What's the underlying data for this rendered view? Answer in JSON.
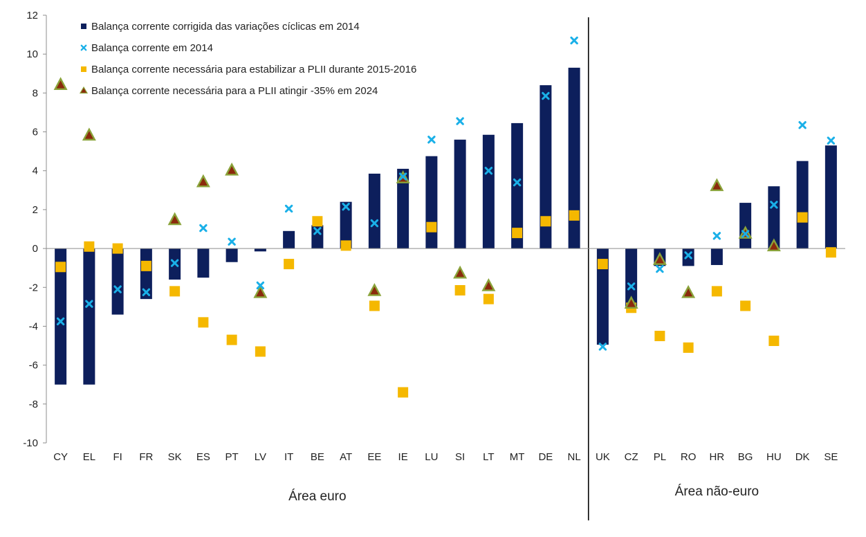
{
  "chart_data": {
    "type": "bar",
    "categories": [
      "CY",
      "EL",
      "FI",
      "FR",
      "SK",
      "ES",
      "PT",
      "LV",
      "IT",
      "BE",
      "AT",
      "EE",
      "IE",
      "LU",
      "SI",
      "LT",
      "MT",
      "DE",
      "NL",
      "UK",
      "CZ",
      "PL",
      "RO",
      "HR",
      "BG",
      "HU",
      "DK",
      "SE"
    ],
    "ylim": [
      -10,
      12
    ],
    "yticks": [
      -10,
      -8,
      -6,
      -4,
      -2,
      0,
      2,
      4,
      6,
      8,
      10,
      12
    ],
    "grid": false,
    "legend_position": "top-left",
    "group_labels": [
      {
        "label": "Área euro",
        "from": "CY",
        "to": "NL"
      },
      {
        "label": "Área não-euro",
        "from": "UK",
        "to": "SE"
      }
    ],
    "series": [
      {
        "name": "Balança corrente corrigida das variações cíclicas em 2014",
        "type": "bar",
        "color": "#0d1f5c",
        "values": [
          -7.0,
          -7.0,
          -3.4,
          -2.6,
          -1.6,
          -1.5,
          -0.7,
          -0.15,
          0.9,
          1.2,
          2.4,
          3.85,
          4.1,
          4.75,
          5.6,
          5.85,
          6.45,
          8.4,
          9.3,
          -4.95,
          -3.0,
          -0.9,
          -0.9,
          -0.85,
          2.35,
          3.2,
          4.5,
          5.3
        ]
      },
      {
        "name": "Balança corrente em 2014",
        "type": "scatter",
        "marker": "x",
        "color": "#1ab0e8",
        "values": [
          -3.75,
          -2.85,
          -2.1,
          -2.25,
          -0.75,
          1.05,
          0.35,
          -1.9,
          2.05,
          0.9,
          2.15,
          1.3,
          3.7,
          5.6,
          6.55,
          4.0,
          3.4,
          7.85,
          10.7,
          -5.05,
          -1.95,
          -1.05,
          -0.35,
          0.65,
          0.75,
          2.25,
          6.35,
          5.55
        ]
      },
      {
        "name": "Balança corrente necessária para estabilizar a PLII durante 2015-2016",
        "type": "scatter",
        "marker": "square",
        "color": "#f5b800",
        "values": [
          -0.95,
          0.1,
          0.0,
          -0.9,
          -2.2,
          -3.8,
          -4.7,
          -5.3,
          -0.8,
          1.4,
          0.15,
          -2.95,
          -7.4,
          1.1,
          -2.15,
          -2.6,
          0.8,
          1.4,
          1.7,
          -0.8,
          -3.05,
          -4.5,
          -5.1,
          -2.2,
          -2.95,
          -4.75,
          1.6,
          -0.2
        ]
      },
      {
        "name": "Balança corrente necessária para a PLII atingir -35% em 2024",
        "type": "scatter",
        "marker": "triangle",
        "color": "#8b2a0c",
        "edge_color": "#8aa33a",
        "values": [
          8.4,
          5.8,
          null,
          null,
          1.45,
          3.4,
          4.0,
          -2.3,
          null,
          null,
          null,
          -2.2,
          3.6,
          null,
          -1.3,
          -1.95,
          null,
          null,
          null,
          null,
          -2.85,
          -0.6,
          -2.3,
          3.2,
          0.75,
          0.1,
          null,
          null
        ]
      }
    ]
  }
}
